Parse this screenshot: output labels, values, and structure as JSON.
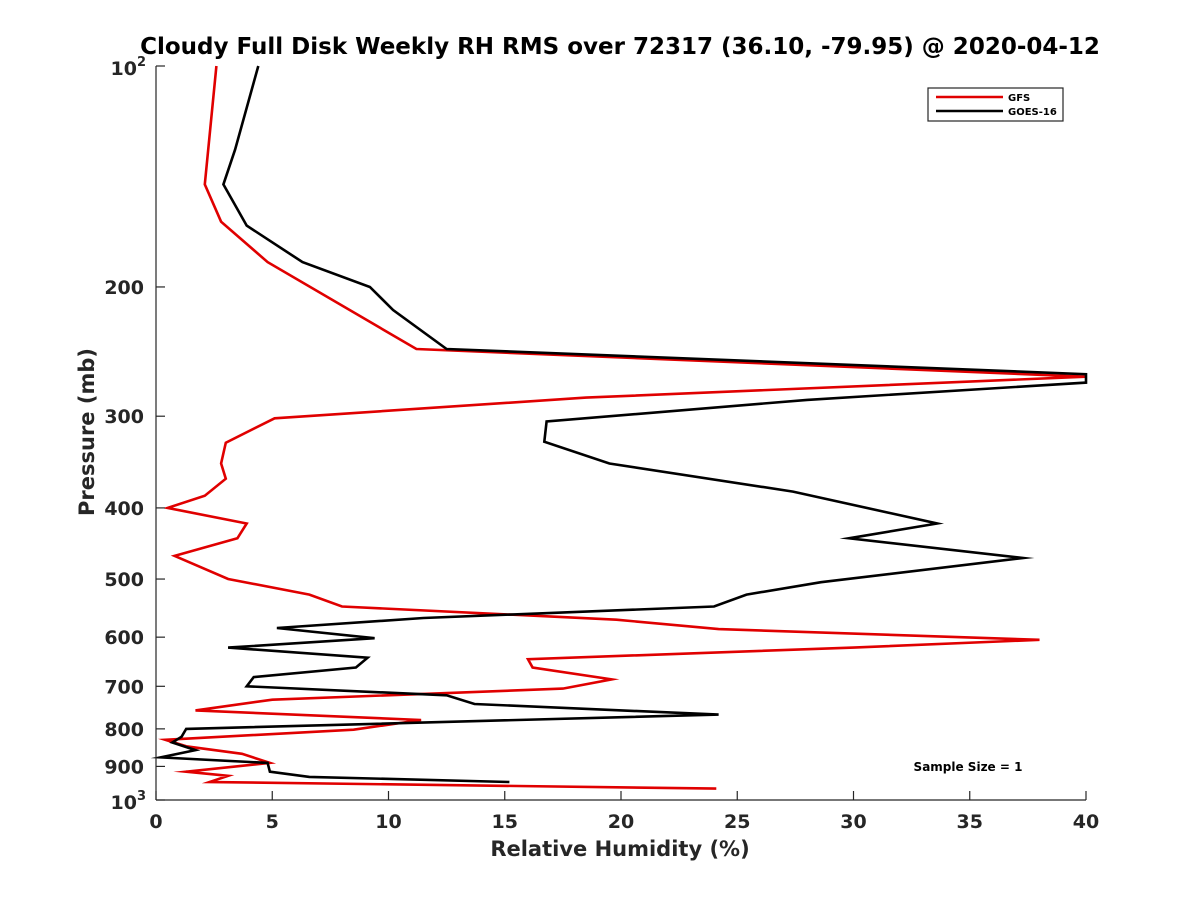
{
  "chart_data": {
    "type": "line",
    "title": "Cloudy Full Disk Weekly RH RMS over 72317 (36.10, -79.95) @ 2020-04-12",
    "xlabel": "Relative Humidity (%)",
    "ylabel": "Pressure (mb)",
    "xlim": [
      0,
      40
    ],
    "ylim": [
      100,
      1000
    ],
    "y_scale": "log",
    "y_reversed": true,
    "x_ticks": [
      "0",
      "5",
      "10",
      "15",
      "20",
      "25",
      "30",
      "35",
      "40"
    ],
    "y_ticks": [
      {
        "value": 100,
        "base": "10",
        "exp": "2"
      },
      {
        "value": 200,
        "label": "200"
      },
      {
        "value": 300,
        "label": "300"
      },
      {
        "value": 400,
        "label": "400"
      },
      {
        "value": 500,
        "label": "500"
      },
      {
        "value": 600,
        "label": "600"
      },
      {
        "value": 700,
        "label": "700"
      },
      {
        "value": 800,
        "label": "800"
      },
      {
        "value": 900,
        "label": "900"
      },
      {
        "value": 1000,
        "base": "10",
        "exp": "3"
      }
    ],
    "legend_position": "top-right",
    "series": [
      {
        "name": "GFS",
        "color": "#e00000",
        "x": [
          2.6,
          2.1,
          2.8,
          4.8,
          11.2,
          40,
          18.5,
          5.1,
          3.0,
          2.8,
          3.0,
          2.1,
          0.5,
          3.9,
          3.5,
          0.8,
          3.1,
          6.6,
          8.0,
          19.8,
          24.2,
          38.0,
          30.0,
          16.0,
          16.2,
          19.6,
          17.5,
          5.0,
          1.7,
          11.4,
          8.5,
          0.4,
          1.3,
          3.7,
          4.9,
          1.3,
          3.1,
          2.3,
          24.1
        ],
        "y": [
          100,
          145,
          163,
          185,
          243,
          265,
          283,
          302,
          326,
          348,
          365,
          385,
          400,
          420,
          440,
          465,
          500,
          525,
          545,
          568,
          585,
          605,
          620,
          643,
          660,
          685,
          705,
          730,
          755,
          778,
          802,
          828,
          845,
          865,
          890,
          915,
          927,
          945,
          965
        ]
      },
      {
        "name": "GOES-16",
        "color": "#000000",
        "x": [
          4.4,
          3.4,
          2.9,
          3.9,
          6.3,
          9.2,
          10.2,
          12.5,
          40,
          40,
          28,
          16.8,
          16.7,
          19.5,
          27.4,
          33.6,
          29.8,
          37.3,
          28.6,
          25.4,
          24.0,
          11.5,
          5.2,
          9.4,
          3.1,
          9.1,
          8.6,
          4.2,
          3.9,
          12.5,
          13.7,
          24.2,
          1.3,
          1.1,
          0.7,
          1.7,
          0.2,
          4.8,
          4.9,
          6.6,
          15.2
        ],
        "y": [
          100,
          130,
          145,
          165,
          185,
          200,
          215,
          243,
          263,
          270,
          285,
          305,
          325,
          348,
          380,
          420,
          440,
          468,
          505,
          525,
          545,
          565,
          583,
          602,
          620,
          640,
          660,
          680,
          700,
          720,
          740,
          765,
          800,
          820,
          835,
          855,
          875,
          890,
          915,
          930,
          945
        ]
      }
    ],
    "annotation": "Sample Size = 1"
  }
}
